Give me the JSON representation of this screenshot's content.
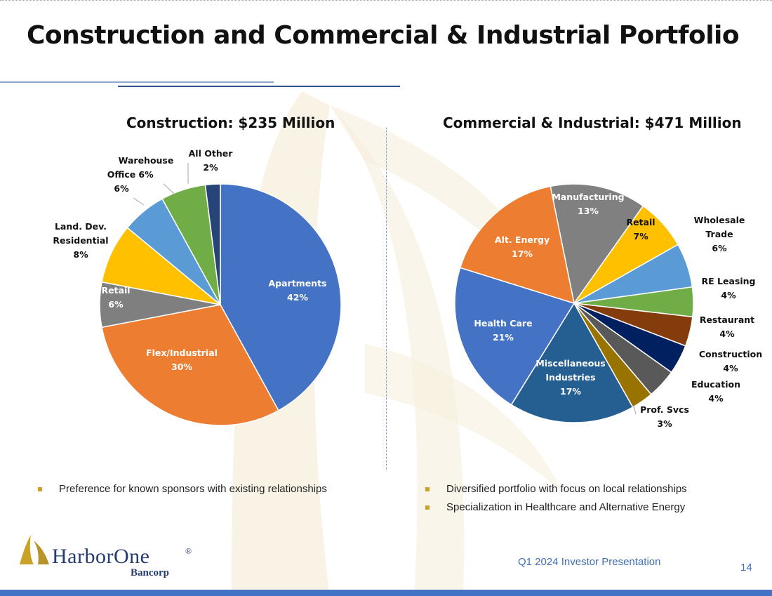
{
  "title": "Construction and Commercial & Industrial Portfolio",
  "chart_data": [
    {
      "type": "pie",
      "title": "Construction:  $235 Million",
      "start": "12 o'clock, clockwise",
      "slices": [
        {
          "label": [
            "Apartments"
          ],
          "pct": "42%",
          "value": 42,
          "color": "#4472c4",
          "label_color": "#ffffff",
          "label_mode": "inside"
        },
        {
          "label": [
            "Flex/Industrial"
          ],
          "pct": "30%",
          "value": 30,
          "color": "#ed7d31",
          "label_color": "#ffffff",
          "label_mode": "inside"
        },
        {
          "label": [
            "Retail"
          ],
          "pct": "6%",
          "value": 6,
          "color": "#7f7f7f",
          "label_color": "#ffffff",
          "label_mode": "inside"
        },
        {
          "label": [
            "Land. Dev.",
            "Residential"
          ],
          "pct": "8%",
          "value": 8,
          "color": "#ffc000",
          "label_color": "#111111",
          "label_mode": "outside"
        },
        {
          "label": [
            "Office"
          ],
          "pct": "6%",
          "value": 6,
          "color": "#5b9bd5",
          "label_color": "#111111",
          "label_mode": "outside"
        },
        {
          "label": [
            "Warehouse"
          ],
          "pct": "6%",
          "value": 6,
          "color": "#70ad47",
          "label_color": "#111111",
          "label_mode": "outside"
        },
        {
          "label": [
            "All Other"
          ],
          "pct": "2%",
          "value": 2,
          "color": "#264478",
          "label_color": "#111111",
          "label_mode": "outside"
        }
      ]
    },
    {
      "type": "pie",
      "title": "Commercial & Industrial:  $471 Million",
      "start": "clockwise",
      "slices": [
        {
          "label": [
            "Manufacturing"
          ],
          "pct": "13%",
          "value": 13,
          "color": "#808080",
          "label_color": "#ffffff",
          "label_mode": "inside"
        },
        {
          "label": [
            "Retail"
          ],
          "pct": "7%",
          "value": 7,
          "color": "#ffc000",
          "label_color": "#111111",
          "label_mode": "inside"
        },
        {
          "label": [
            "Wholesale",
            "Trade"
          ],
          "pct": "6%",
          "value": 6,
          "color": "#5b9bd5",
          "label_color": "#111111",
          "label_mode": "outside"
        },
        {
          "label": [
            "RE Leasing"
          ],
          "pct": "4%",
          "value": 4,
          "color": "#70ad47",
          "label_color": "#111111",
          "label_mode": "outside"
        },
        {
          "label": [
            "Restaurant"
          ],
          "pct": "4%",
          "value": 4,
          "color": "#843c0c",
          "label_color": "#111111",
          "label_mode": "outside"
        },
        {
          "label": [
            "Construction"
          ],
          "pct": "4%",
          "value": 4,
          "color": "#002060",
          "label_color": "#111111",
          "label_mode": "outside"
        },
        {
          "label": [
            "Education"
          ],
          "pct": "4%",
          "value": 4,
          "color": "#595959",
          "label_color": "#111111",
          "label_mode": "outside"
        },
        {
          "label": [
            "Prof. Svcs"
          ],
          "pct": "3%",
          "value": 3,
          "color": "#997300",
          "label_color": "#111111",
          "label_mode": "outside"
        },
        {
          "label": [
            "Miscellaneous",
            "Industries"
          ],
          "pct": "17%",
          "value": 17,
          "color": "#255e91",
          "label_color": "#ffffff",
          "label_mode": "inside"
        },
        {
          "label": [
            "Health Care"
          ],
          "pct": "21%",
          "value": 21,
          "color": "#4472c4",
          "label_color": "#ffffff",
          "label_mode": "inside"
        },
        {
          "label": [
            "Alt. Energy"
          ],
          "pct": "17%",
          "value": 17,
          "color": "#ed7d31",
          "label_color": "#ffffff",
          "label_mode": "inside"
        }
      ]
    }
  ],
  "bullets_left": [
    "Preference for known sponsors with existing relationships"
  ],
  "bullets_right": [
    "Diversified portfolio with focus on local relationships",
    "Specialization in Healthcare and Alternative Energy"
  ],
  "logo": {
    "name": "HarborOne",
    "registered": "®",
    "sub": "Bancorp"
  },
  "footer": {
    "presentation": "Q1 2024 Investor Presentation",
    "page": "14"
  },
  "colors": {
    "accent": "#4472c4",
    "bullet": "#c9a227",
    "footer_text": "#3f6fb6",
    "logo": "#243b73"
  }
}
